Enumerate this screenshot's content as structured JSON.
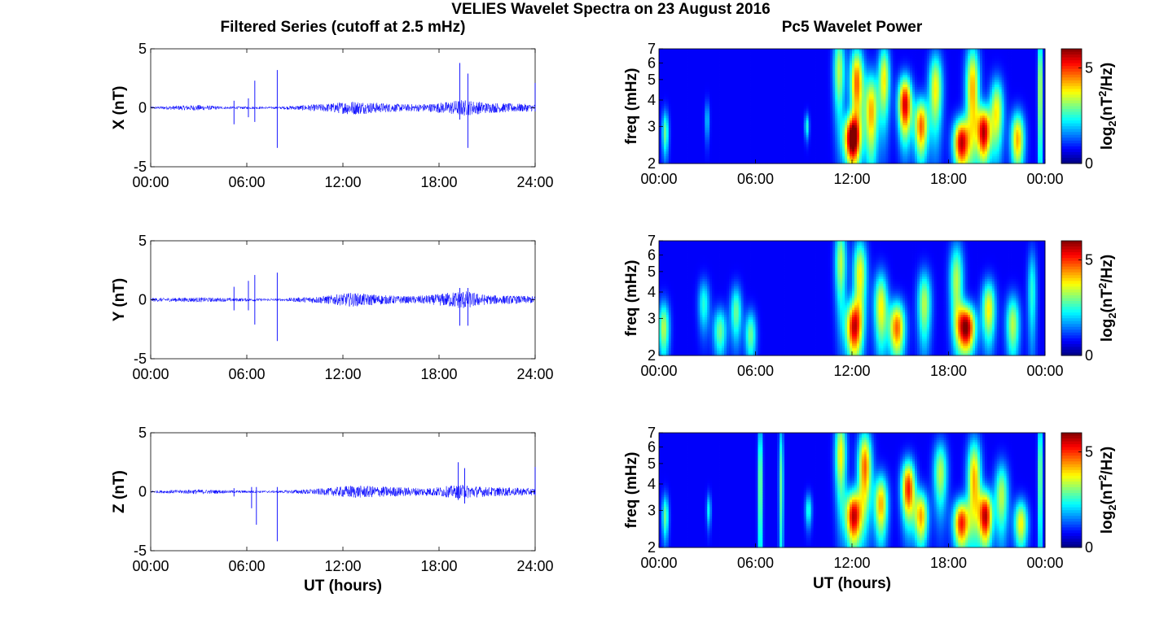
{
  "figure": {
    "title": "VELIES Wavelet Spectra on 23 August 2016",
    "left_title": "Filtered Series (cutoff at 2.5 mHz)",
    "right_title": "Pc5 Wavelet Power",
    "xlabel": "UT (hours)"
  },
  "chart_data": [
    {
      "type": "line",
      "component": "X",
      "ylabel": "X (nT)",
      "ylim": [
        -5,
        5
      ],
      "yticks": [
        "5",
        "0",
        "-5"
      ],
      "xlim_hours": [
        0,
        24
      ],
      "xticks": [
        "00:00",
        "06:00",
        "12:00",
        "18:00",
        "24:00"
      ],
      "series_color": "#0000ff",
      "activity_envelope": [
        {
          "hour": 0,
          "amp": 0.1
        },
        {
          "hour": 3,
          "amp": 0.25
        },
        {
          "hour": 4.5,
          "amp": 0.12
        },
        {
          "hour": 8,
          "amp": 0.1
        },
        {
          "hour": 11,
          "amp": 0.35
        },
        {
          "hour": 12.5,
          "amp": 0.6
        },
        {
          "hour": 14.5,
          "amp": 0.4
        },
        {
          "hour": 16,
          "amp": 0.3
        },
        {
          "hour": 17.5,
          "amp": 0.35
        },
        {
          "hour": 19.5,
          "amp": 0.7
        },
        {
          "hour": 21,
          "amp": 0.45
        },
        {
          "hour": 24,
          "amp": 0.3
        }
      ],
      "spikes": [
        {
          "hour": 5.2,
          "min": -1.4,
          "max": 0.6
        },
        {
          "hour": 6.1,
          "min": -0.8,
          "max": 0.8
        },
        {
          "hour": 6.5,
          "min": -1.2,
          "max": 2.3
        },
        {
          "hour": 7.9,
          "min": -3.4,
          "max": 3.2
        },
        {
          "hour": 19.3,
          "min": -1.0,
          "max": 3.8
        },
        {
          "hour": 19.8,
          "min": -3.4,
          "max": 2.9
        },
        {
          "hour": 24,
          "min": -0.3,
          "max": 2.1
        }
      ]
    },
    {
      "type": "line",
      "component": "Y",
      "ylabel": "Y (nT)",
      "ylim": [
        -5,
        5
      ],
      "yticks": [
        "5",
        "0",
        "-5"
      ],
      "xlim_hours": [
        0,
        24
      ],
      "xticks": [
        "00:00",
        "06:00",
        "12:00",
        "18:00",
        "24:00"
      ],
      "series_color": "#0000ff",
      "activity_envelope": [
        {
          "hour": 0,
          "amp": 0.15
        },
        {
          "hour": 3,
          "amp": 0.2
        },
        {
          "hour": 5,
          "amp": 0.15
        },
        {
          "hour": 8,
          "amp": 0.1
        },
        {
          "hour": 11,
          "amp": 0.35
        },
        {
          "hour": 12.5,
          "amp": 0.6
        },
        {
          "hour": 14.5,
          "amp": 0.4
        },
        {
          "hour": 16,
          "amp": 0.3
        },
        {
          "hour": 17.5,
          "amp": 0.4
        },
        {
          "hour": 19.5,
          "amp": 0.8
        },
        {
          "hour": 21,
          "amp": 0.4
        },
        {
          "hour": 24,
          "amp": 0.3
        }
      ],
      "spikes": [
        {
          "hour": 5.2,
          "min": -0.9,
          "max": 1.1
        },
        {
          "hour": 6.1,
          "min": -0.9,
          "max": 1.6
        },
        {
          "hour": 6.5,
          "min": -2.1,
          "max": 2.1
        },
        {
          "hour": 7.9,
          "min": -3.5,
          "max": 2.3
        },
        {
          "hour": 19.3,
          "min": -2.2,
          "max": 1.0
        },
        {
          "hour": 19.8,
          "min": -2.2,
          "max": 1.0
        }
      ]
    },
    {
      "type": "line",
      "component": "Z",
      "ylabel": "Z (nT)",
      "ylim": [
        -5,
        5
      ],
      "yticks": [
        "5",
        "0",
        "-5"
      ],
      "xlim_hours": [
        0,
        24
      ],
      "xticks": [
        "00:00",
        "06:00",
        "12:00",
        "18:00",
        "24:00"
      ],
      "series_color": "#0000ff",
      "activity_envelope": [
        {
          "hour": 0,
          "amp": 0.1
        },
        {
          "hour": 3,
          "amp": 0.2
        },
        {
          "hour": 5,
          "amp": 0.12
        },
        {
          "hour": 8,
          "amp": 0.1
        },
        {
          "hour": 11,
          "amp": 0.3
        },
        {
          "hour": 12.5,
          "amp": 0.55
        },
        {
          "hour": 14.5,
          "amp": 0.45
        },
        {
          "hour": 16.5,
          "amp": 0.35
        },
        {
          "hour": 17.5,
          "amp": 0.35
        },
        {
          "hour": 19.5,
          "amp": 0.6
        },
        {
          "hour": 21,
          "amp": 0.4
        },
        {
          "hour": 24,
          "amp": 0.3
        }
      ],
      "spikes": [
        {
          "hour": 5.2,
          "min": -0.4,
          "max": 0.3
        },
        {
          "hour": 6.3,
          "min": -1.4,
          "max": 0.4
        },
        {
          "hour": 6.6,
          "min": -2.8,
          "max": 0.4
        },
        {
          "hour": 7.9,
          "min": -4.2,
          "max": 0.4
        },
        {
          "hour": 19.2,
          "min": -0.7,
          "max": 2.5
        },
        {
          "hour": 19.6,
          "min": -1.0,
          "max": 2.0
        },
        {
          "hour": 24,
          "min": -0.3,
          "max": 2.1
        }
      ]
    },
    {
      "type": "heatmap",
      "component": "X",
      "ylabel": "freq (mHz)",
      "yscale": "log",
      "ylim_mhz": [
        2,
        7
      ],
      "yticks": [
        "7",
        "6",
        "5",
        "4",
        "3",
        "2"
      ],
      "xlim_hours": [
        0,
        24
      ],
      "xticks": [
        "00:00",
        "06:00",
        "12:00",
        "18:00",
        "00:00"
      ],
      "colormap": "jet",
      "colorbar": {
        "label": "log2(nT^2/Hz)",
        "range": [
          0,
          6
        ],
        "ticks": [
          "5",
          "0"
        ]
      },
      "blobs": [
        {
          "hour": 0.4,
          "freq": 2.8,
          "wt": 0.15,
          "wf": 0.5,
          "power": 2.5
        },
        {
          "hour": 3.0,
          "freq": 3.2,
          "wt": 0.1,
          "wf": 0.5,
          "power": 1.5
        },
        {
          "hour": 9.2,
          "freq": 3.0,
          "wt": 0.1,
          "wf": 0.3,
          "power": 2.0
        },
        {
          "hour": 11.2,
          "freq": 5.5,
          "wt": 0.25,
          "wf": 1.8,
          "power": 3.0
        },
        {
          "hour": 12.0,
          "freq": 2.6,
          "wt": 0.35,
          "wf": 0.5,
          "power": 6.0
        },
        {
          "hour": 12.3,
          "freq": 4.8,
          "wt": 0.3,
          "wf": 1.5,
          "power": 4.5
        },
        {
          "hour": 13.2,
          "freq": 3.5,
          "wt": 0.3,
          "wf": 1.2,
          "power": 4.0
        },
        {
          "hour": 14.0,
          "freq": 5.0,
          "wt": 0.25,
          "wf": 1.5,
          "power": 3.5
        },
        {
          "hour": 15.3,
          "freq": 3.8,
          "wt": 0.3,
          "wf": 0.9,
          "power": 5.5
        },
        {
          "hour": 16.3,
          "freq": 3.0,
          "wt": 0.3,
          "wf": 0.7,
          "power": 4.5
        },
        {
          "hour": 17.2,
          "freq": 4.5,
          "wt": 0.3,
          "wf": 1.4,
          "power": 3.5
        },
        {
          "hour": 18.8,
          "freq": 2.5,
          "wt": 0.35,
          "wf": 0.5,
          "power": 5.5
        },
        {
          "hour": 19.5,
          "freq": 4.5,
          "wt": 0.3,
          "wf": 1.8,
          "power": 4.0
        },
        {
          "hour": 20.2,
          "freq": 2.8,
          "wt": 0.3,
          "wf": 0.6,
          "power": 5.5
        },
        {
          "hour": 21.0,
          "freq": 3.5,
          "wt": 0.3,
          "wf": 1.0,
          "power": 3.5
        },
        {
          "hour": 22.3,
          "freq": 2.6,
          "wt": 0.3,
          "wf": 0.6,
          "power": 4.0
        },
        {
          "hour": 23.7,
          "freq": 4.5,
          "wt": 0.1,
          "wf": 2.5,
          "power": 3.5
        }
      ]
    },
    {
      "type": "heatmap",
      "component": "Y",
      "ylabel": "freq (mHz)",
      "yscale": "log",
      "ylim_mhz": [
        2,
        7
      ],
      "yticks": [
        "7",
        "6",
        "5",
        "4",
        "3",
        "2"
      ],
      "xlim_hours": [
        0,
        24
      ],
      "xticks": [
        "00:00",
        "06:00",
        "12:00",
        "18:00",
        "00:00"
      ],
      "colormap": "jet",
      "colorbar": {
        "label": "log2(nT^2/Hz)",
        "range": [
          0,
          6
        ],
        "ticks": [
          "5",
          "0"
        ]
      },
      "blobs": [
        {
          "hour": 0.3,
          "freq": 2.7,
          "wt": 0.25,
          "wf": 0.6,
          "power": 3.0
        },
        {
          "hour": 2.8,
          "freq": 3.5,
          "wt": 0.25,
          "wf": 0.7,
          "power": 2.0
        },
        {
          "hour": 3.8,
          "freq": 2.6,
          "wt": 0.3,
          "wf": 0.5,
          "power": 2.5
        },
        {
          "hour": 4.8,
          "freq": 3.2,
          "wt": 0.25,
          "wf": 0.7,
          "power": 2.5
        },
        {
          "hour": 5.7,
          "freq": 2.5,
          "wt": 0.25,
          "wf": 0.5,
          "power": 2.5
        },
        {
          "hour": 11.3,
          "freq": 5.5,
          "wt": 0.25,
          "wf": 1.8,
          "power": 3.0
        },
        {
          "hour": 12.1,
          "freq": 2.7,
          "wt": 0.35,
          "wf": 0.6,
          "power": 5.0
        },
        {
          "hour": 12.5,
          "freq": 4.8,
          "wt": 0.3,
          "wf": 1.5,
          "power": 3.5
        },
        {
          "hour": 13.8,
          "freq": 3.4,
          "wt": 0.3,
          "wf": 1.0,
          "power": 3.5
        },
        {
          "hour": 14.8,
          "freq": 2.7,
          "wt": 0.35,
          "wf": 0.6,
          "power": 4.5
        },
        {
          "hour": 16.5,
          "freq": 3.5,
          "wt": 0.3,
          "wf": 1.0,
          "power": 3.0
        },
        {
          "hour": 18.5,
          "freq": 4.5,
          "wt": 0.3,
          "wf": 1.5,
          "power": 3.0
        },
        {
          "hour": 19.1,
          "freq": 2.7,
          "wt": 0.4,
          "wf": 0.5,
          "power": 6.0
        },
        {
          "hour": 20.5,
          "freq": 3.3,
          "wt": 0.3,
          "wf": 0.8,
          "power": 3.5
        },
        {
          "hour": 22.0,
          "freq": 2.8,
          "wt": 0.3,
          "wf": 0.7,
          "power": 3.0
        },
        {
          "hour": 23.2,
          "freq": 4.0,
          "wt": 0.2,
          "wf": 1.5,
          "power": 2.0
        }
      ]
    },
    {
      "type": "heatmap",
      "component": "Z",
      "ylabel": "freq (mHz)",
      "yscale": "log",
      "ylim_mhz": [
        2,
        7
      ],
      "yticks": [
        "7",
        "6",
        "5",
        "4",
        "3",
        "2"
      ],
      "xlim_hours": [
        0,
        24
      ],
      "xticks": [
        "00:00",
        "06:00",
        "12:00",
        "18:00",
        "00:00"
      ],
      "colormap": "jet",
      "colorbar": {
        "label": "log2(nT^2/Hz)",
        "range": [
          0,
          6
        ],
        "ticks": [
          "5",
          "0"
        ]
      },
      "blobs": [
        {
          "hour": 0.4,
          "freq": 2.8,
          "wt": 0.15,
          "wf": 0.5,
          "power": 2.5
        },
        {
          "hour": 3.1,
          "freq": 3.0,
          "wt": 0.1,
          "wf": 0.4,
          "power": 1.8
        },
        {
          "hour": 6.3,
          "freq": 4.0,
          "wt": 0.1,
          "wf": 2.5,
          "power": 3.0
        },
        {
          "hour": 7.6,
          "freq": 4.0,
          "wt": 0.1,
          "wf": 2.5,
          "power": 2.5
        },
        {
          "hour": 9.3,
          "freq": 3.0,
          "wt": 0.15,
          "wf": 0.4,
          "power": 2.0
        },
        {
          "hour": 11.3,
          "freq": 5.5,
          "wt": 0.25,
          "wf": 1.8,
          "power": 3.5
        },
        {
          "hour": 12.1,
          "freq": 2.8,
          "wt": 0.35,
          "wf": 0.6,
          "power": 5.5
        },
        {
          "hour": 12.8,
          "freq": 4.8,
          "wt": 0.3,
          "wf": 1.5,
          "power": 4.5
        },
        {
          "hour": 13.8,
          "freq": 3.2,
          "wt": 0.3,
          "wf": 0.8,
          "power": 4.0
        },
        {
          "hour": 15.5,
          "freq": 3.8,
          "wt": 0.3,
          "wf": 0.9,
          "power": 5.0
        },
        {
          "hour": 16.3,
          "freq": 2.8,
          "wt": 0.3,
          "wf": 0.6,
          "power": 4.0
        },
        {
          "hour": 17.5,
          "freq": 4.5,
          "wt": 0.3,
          "wf": 1.2,
          "power": 3.0
        },
        {
          "hour": 18.8,
          "freq": 2.6,
          "wt": 0.35,
          "wf": 0.5,
          "power": 5.0
        },
        {
          "hour": 19.6,
          "freq": 4.2,
          "wt": 0.3,
          "wf": 1.5,
          "power": 4.0
        },
        {
          "hour": 20.3,
          "freq": 2.8,
          "wt": 0.3,
          "wf": 0.6,
          "power": 5.5
        },
        {
          "hour": 21.3,
          "freq": 3.5,
          "wt": 0.3,
          "wf": 1.0,
          "power": 3.0
        },
        {
          "hour": 22.5,
          "freq": 2.6,
          "wt": 0.3,
          "wf": 0.5,
          "power": 3.5
        },
        {
          "hour": 23.7,
          "freq": 4.5,
          "wt": 0.1,
          "wf": 2.5,
          "power": 3.0
        }
      ]
    }
  ]
}
